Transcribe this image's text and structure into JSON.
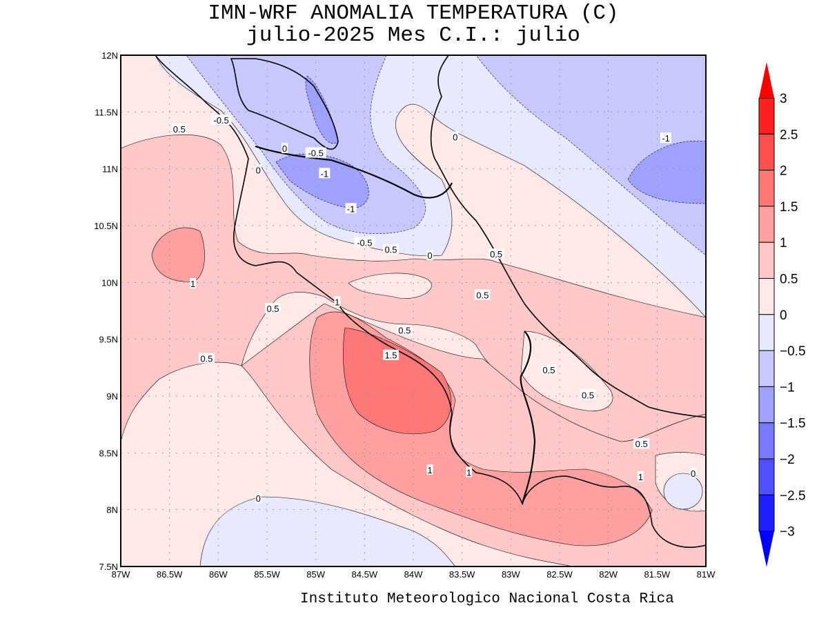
{
  "title": {
    "line1": "IMN-WRF  ANOMALIA TEMPERATURA (C)",
    "line2": "julio-2025 Mes C.I.: julio"
  },
  "footer": "Instituto Meteorologico Nacional Costa Rica",
  "map": {
    "lon_range": [
      -87,
      -81
    ],
    "lat_range": [
      7.5,
      12
    ],
    "grid": "dotted every 0.5 degree",
    "x_tick_labels": [
      "87W",
      "86.5W",
      "86W",
      "85.5W",
      "85W",
      "84.5W",
      "84W",
      "83.5W",
      "83W",
      "82.5W",
      "82W",
      "81.5W",
      "81W"
    ],
    "y_tick_labels": [
      "7.5N",
      "8N",
      "8.5N",
      "9N",
      "9.5N",
      "10N",
      "10.5N",
      "11N",
      "11.5N",
      "12N"
    ],
    "contour_labels": [
      {
        "text": "0.5",
        "lon": -86.4,
        "lat": 11.35
      },
      {
        "text": "-0.5",
        "lon": -85.97,
        "lat": 11.43
      },
      {
        "text": "0",
        "lon": -85.32,
        "lat": 11.18
      },
      {
        "text": "-0.5",
        "lon": -85.0,
        "lat": 11.14
      },
      {
        "text": "0",
        "lon": -85.59,
        "lat": 10.99
      },
      {
        "text": "-1",
        "lon": -84.91,
        "lat": 10.96
      },
      {
        "text": "-1",
        "lon": -84.64,
        "lat": 10.65
      },
      {
        "text": "-0.5",
        "lon": -84.5,
        "lat": 10.35
      },
      {
        "text": "0.5",
        "lon": -84.23,
        "lat": 10.29
      },
      {
        "text": "0",
        "lon": -83.83,
        "lat": 10.24
      },
      {
        "text": "0",
        "lon": -83.57,
        "lat": 11.28
      },
      {
        "text": "-1",
        "lon": -81.41,
        "lat": 11.27
      },
      {
        "text": "1",
        "lon": -86.26,
        "lat": 9.99
      },
      {
        "text": "0.5",
        "lon": -85.44,
        "lat": 9.77
      },
      {
        "text": "1",
        "lon": -84.78,
        "lat": 9.83
      },
      {
        "text": "0.5",
        "lon": -83.15,
        "lat": 10.25
      },
      {
        "text": "0.5",
        "lon": -83.29,
        "lat": 9.89
      },
      {
        "text": "0.5",
        "lon": -84.09,
        "lat": 9.58
      },
      {
        "text": "1.5",
        "lon": -84.23,
        "lat": 9.36
      },
      {
        "text": "0.5",
        "lon": -86.12,
        "lat": 9.33
      },
      {
        "text": "0.5",
        "lon": -82.61,
        "lat": 9.23
      },
      {
        "text": "0.5",
        "lon": -82.21,
        "lat": 9.01
      },
      {
        "text": "0.5",
        "lon": -81.66,
        "lat": 8.58
      },
      {
        "text": "1",
        "lon": -83.83,
        "lat": 8.35
      },
      {
        "text": "1",
        "lon": -83.43,
        "lat": 8.33
      },
      {
        "text": "1",
        "lon": -81.67,
        "lat": 8.29
      },
      {
        "text": "0",
        "lon": -81.13,
        "lat": 8.32
      },
      {
        "text": "0",
        "lon": -85.59,
        "lat": 8.1
      }
    ]
  },
  "colorbar": {
    "levels": [
      "3",
      "2.5",
      "2",
      "1.5",
      "1",
      "0.5",
      "0",
      "−0.5",
      "−1",
      "−1.5",
      "−2",
      "−2.5",
      "−3"
    ],
    "colors": [
      "#ff2020",
      "#ff5050",
      "#ff7878",
      "#ffa0a0",
      "#ffc8c8",
      "#ffe8e8",
      "#e8e8ff",
      "#c8c8ff",
      "#a0a0ff",
      "#7878ff",
      "#5050ff",
      "#2020ff"
    ],
    "top_arrow_color": "#ff0000",
    "bottom_arrow_color": "#0000ff"
  }
}
